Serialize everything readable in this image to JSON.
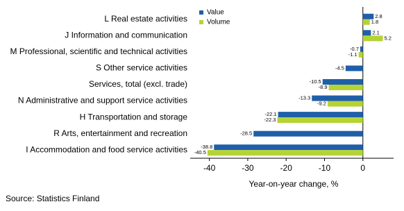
{
  "chart_data": {
    "type": "hbar",
    "categories": [
      "L Real estate activities",
      "J Information and communication",
      "M Professional, scientific and technical activities",
      "S Other service activities",
      "Services, total (excl. trade)",
      "N Administrative and support service activities",
      "H Transportation and storage",
      "R Arts, entertainment and recreation",
      "I Accommodation and food service activities"
    ],
    "series": [
      {
        "name": "Value",
        "color": "#1f5fa8",
        "values": [
          2.8,
          2.1,
          -0.7,
          -4.5,
          -10.5,
          -13.3,
          -22.1,
          -28.5,
          -38.8
        ]
      },
      {
        "name": "Volume",
        "color": "#b5d334",
        "values": [
          1.8,
          5.2,
          -1.1,
          null,
          -8.9,
          -9.2,
          -22.3,
          null,
          -40.5
        ]
      }
    ],
    "xlim": [
      -45,
      8
    ],
    "xticks": [
      -40,
      -30,
      -20,
      -10,
      0
    ],
    "xlabel": "Year-on-year change, %",
    "source": "Source: Statistics Finland",
    "legend": "top-left"
  }
}
